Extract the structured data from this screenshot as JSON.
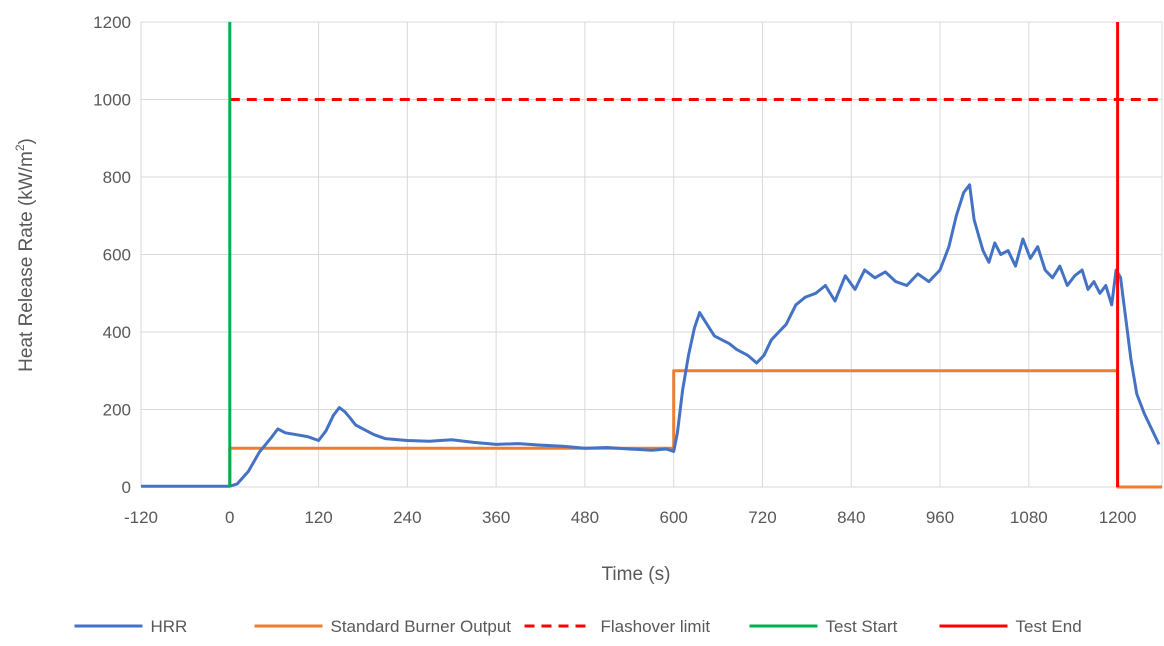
{
  "chart_data": {
    "type": "line",
    "title": "",
    "xlabel": "Time (s)",
    "ylabel_main": "Heat Release Rate (kW/m",
    "ylabel_sup": "2",
    "ylabel_end": ")",
    "xlim": [
      -120,
      1260
    ],
    "ylim": [
      0,
      1200
    ],
    "x_ticks": [
      -120,
      0,
      120,
      240,
      360,
      480,
      600,
      720,
      840,
      960,
      1080,
      1200
    ],
    "y_ticks": [
      0,
      200,
      400,
      600,
      800,
      1000,
      1200
    ],
    "grid": "vertical and horizontal major gridlines",
    "legend_position": "bottom",
    "series": [
      {
        "name": "HRR",
        "color": "#4472C4",
        "style": "solid",
        "x": [
          -120,
          -60,
          0,
          10,
          25,
          40,
          55,
          65,
          75,
          90,
          105,
          120,
          130,
          140,
          148,
          155,
          162,
          170,
          180,
          195,
          210,
          240,
          270,
          300,
          330,
          360,
          390,
          420,
          450,
          480,
          510,
          540,
          570,
          590,
          600,
          605,
          612,
          620,
          628,
          635,
          645,
          655,
          665,
          675,
          685,
          700,
          712,
          722,
          732,
          742,
          752,
          765,
          778,
          792,
          805,
          818,
          832,
          845,
          858,
          872,
          886,
          900,
          915,
          930,
          945,
          960,
          972,
          982,
          992,
          1000,
          1006,
          1012,
          1018,
          1026,
          1034,
          1042,
          1052,
          1062,
          1072,
          1082,
          1092,
          1102,
          1112,
          1122,
          1132,
          1142,
          1152,
          1160,
          1168,
          1176,
          1184,
          1192,
          1198,
          1204,
          1208,
          1212,
          1218,
          1226,
          1236,
          1246,
          1256
        ],
        "y": [
          2,
          2,
          2,
          8,
          40,
          90,
          125,
          150,
          140,
          135,
          130,
          120,
          145,
          185,
          205,
          195,
          180,
          160,
          150,
          135,
          125,
          120,
          118,
          122,
          115,
          110,
          112,
          108,
          105,
          100,
          102,
          98,
          95,
          98,
          92,
          140,
          250,
          340,
          410,
          450,
          420,
          390,
          380,
          370,
          355,
          340,
          320,
          340,
          380,
          400,
          420,
          470,
          490,
          500,
          520,
          480,
          545,
          510,
          560,
          540,
          555,
          530,
          520,
          550,
          530,
          560,
          620,
          700,
          760,
          780,
          690,
          650,
          610,
          580,
          630,
          600,
          610,
          570,
          640,
          590,
          620,
          560,
          540,
          570,
          520,
          545,
          560,
          510,
          530,
          500,
          520,
          470,
          560,
          540,
          480,
          420,
          330,
          240,
          190,
          150,
          110
        ]
      },
      {
        "name": "Standard Burner Output",
        "color": "#ED7D31",
        "style": "solid",
        "x": [
          0,
          0,
          600,
          600,
          1200,
          1200,
          1260
        ],
        "y": [
          0,
          100,
          100,
          300,
          300,
          0,
          0
        ]
      },
      {
        "name": "Flashover limit",
        "color": "#FF0000",
        "style": "dashed",
        "x": [
          0,
          1260
        ],
        "y": [
          1000,
          1000
        ]
      },
      {
        "name": "Test Start",
        "color": "#00B050",
        "style": "solid",
        "x": [
          0,
          0
        ],
        "y": [
          0,
          1200
        ]
      },
      {
        "name": "Test End",
        "color": "#FF0000",
        "style": "solid",
        "x": [
          1200,
          1200
        ],
        "y": [
          0,
          1200
        ]
      }
    ]
  }
}
